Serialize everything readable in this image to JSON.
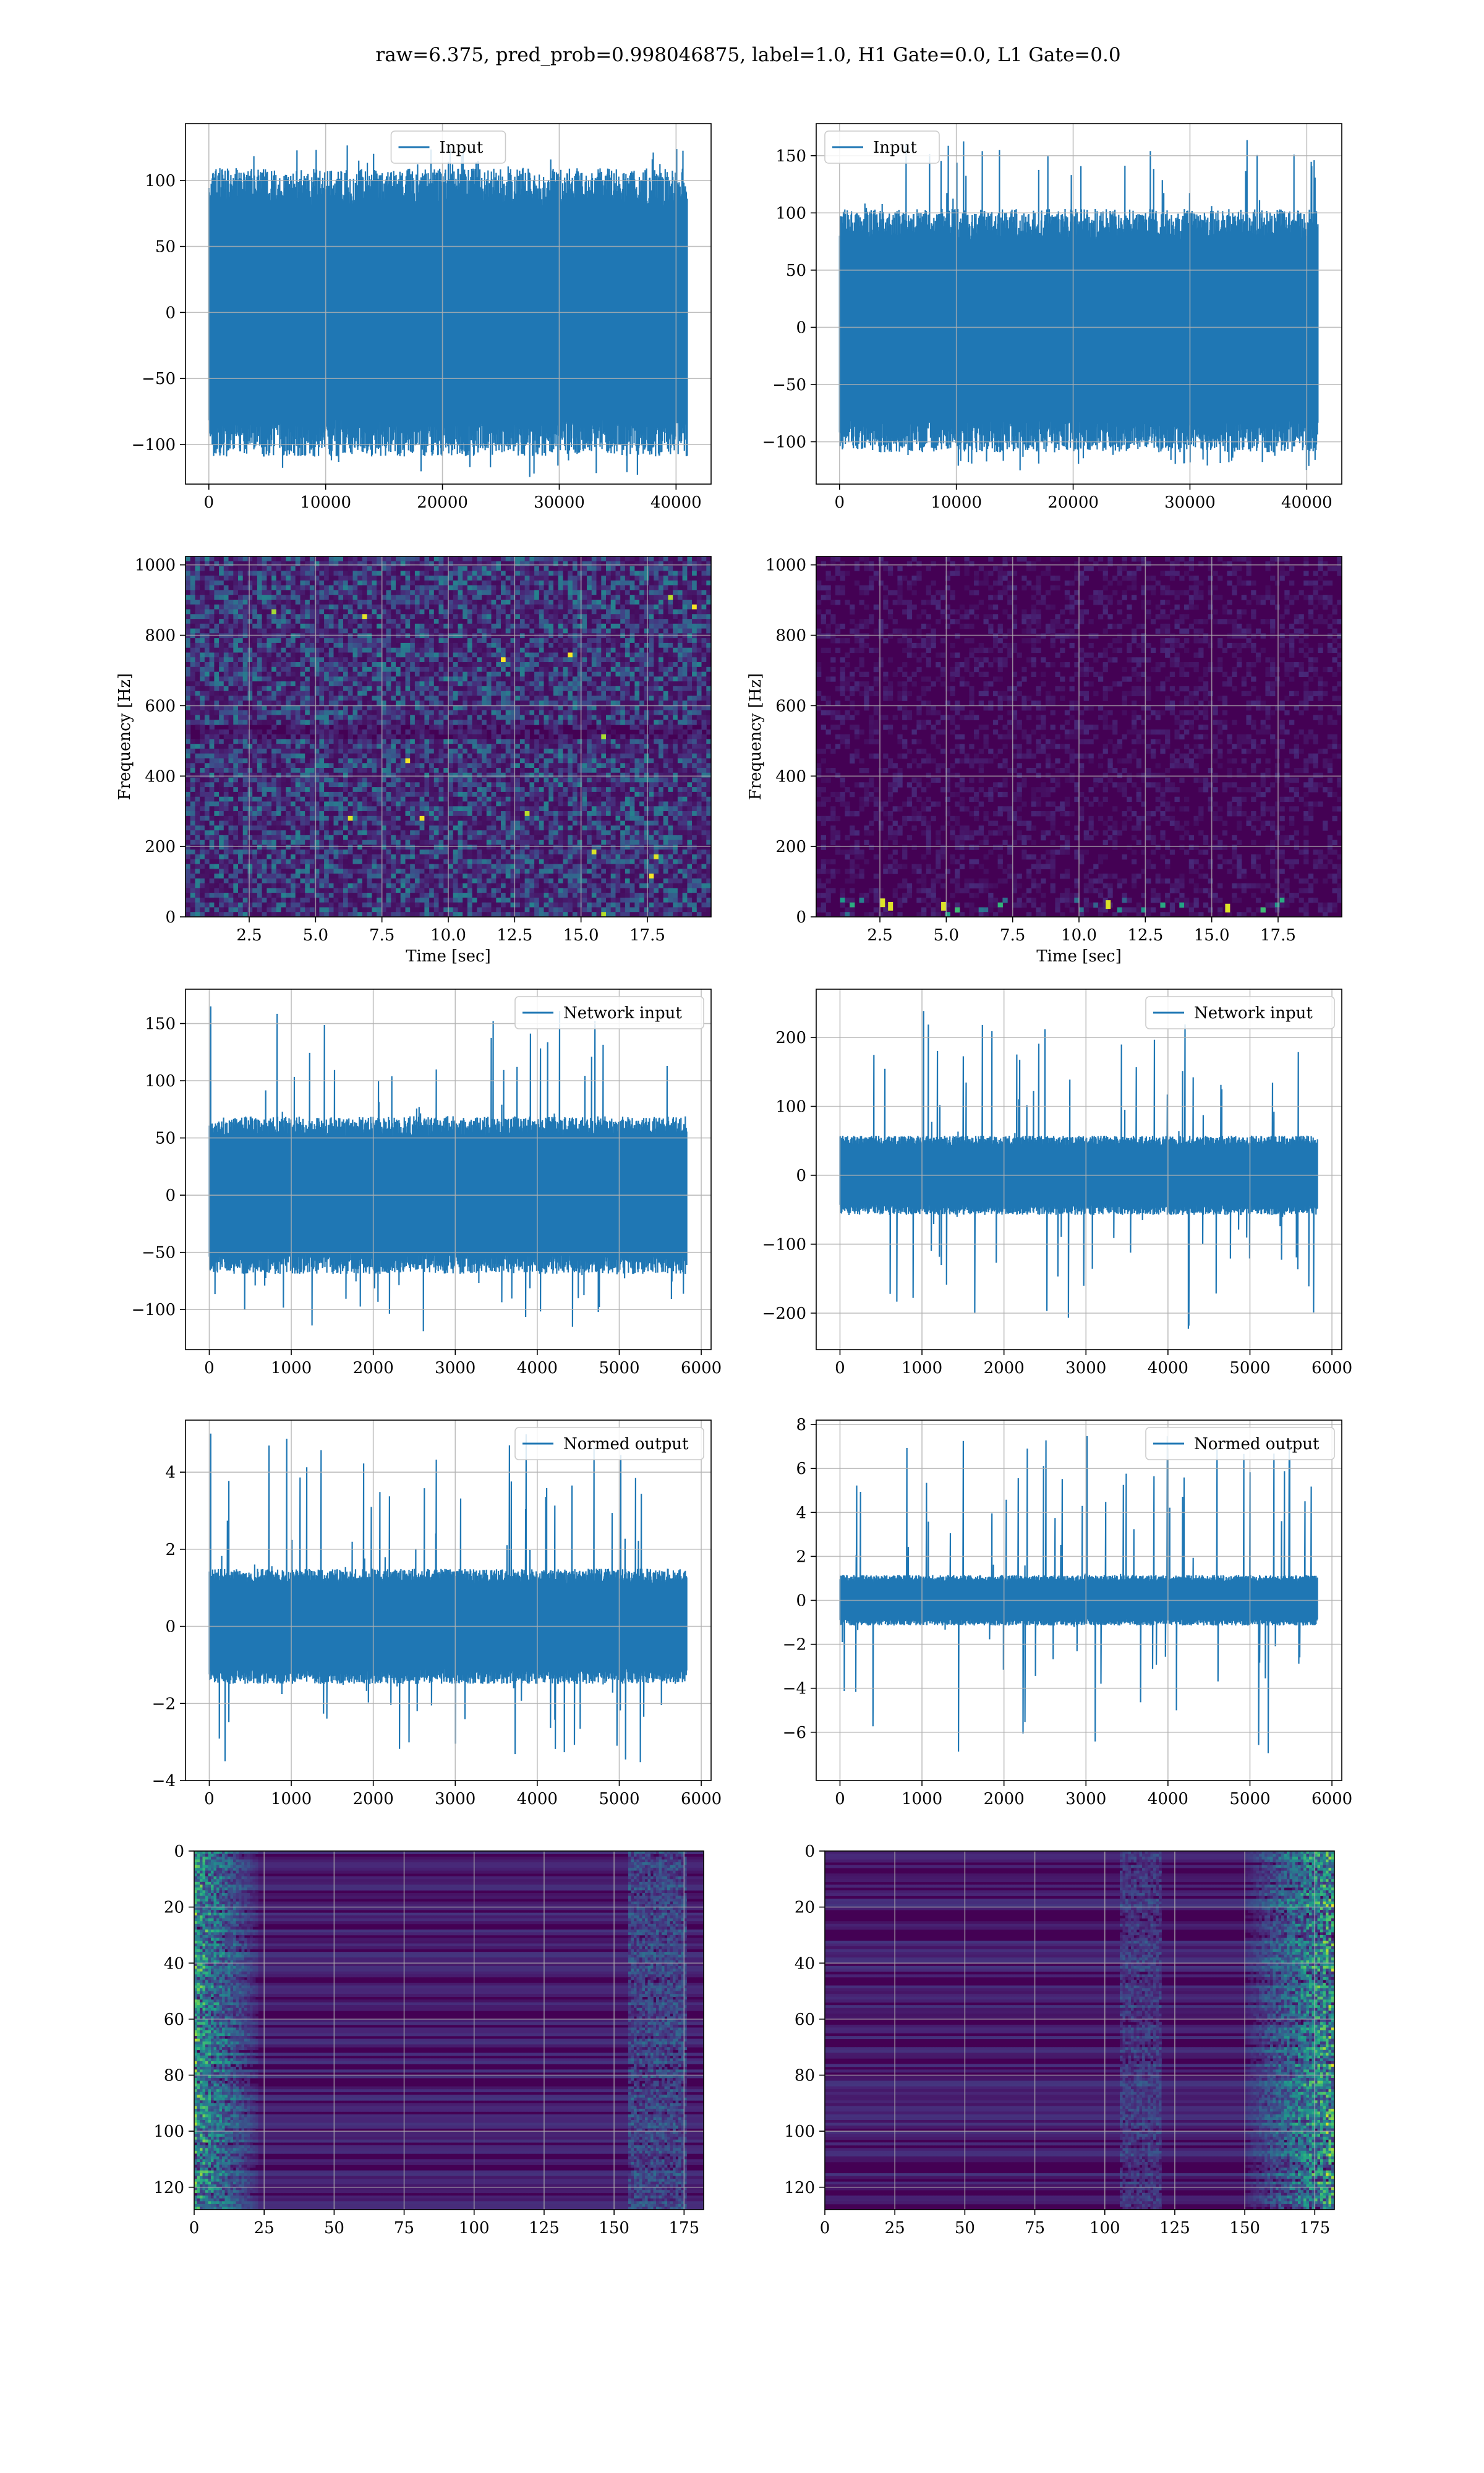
{
  "figure": {
    "suptitle": "raw=6.375, pred_prob=0.998046875, label=1.0, H1 Gate=0.0, L1 Gate=0.0",
    "colors": {
      "line": "#1f77b4",
      "heat_base": "#440154",
      "grid": "#b0b0b0"
    }
  },
  "chart_data": [
    {
      "id": "input-h1",
      "type": "line",
      "title": "",
      "xlabel": "",
      "ylabel": "",
      "legend": {
        "placement": "top-center",
        "entries": [
          "Input"
        ]
      },
      "series": [
        {
          "name": "Input",
          "n_samples": 40960,
          "envelope": {
            "typical_min": -95,
            "typical_max": 95,
            "peak_min": -125,
            "peak_max": 127
          }
        }
      ],
      "xlim": [
        -2000,
        43000
      ],
      "ylim": [
        -130,
        143
      ],
      "xticks": [
        0,
        10000,
        20000,
        30000,
        40000
      ],
      "xtick_labels": [
        "0",
        "10000",
        "20000",
        "30000",
        "40000"
      ],
      "yticks": [
        -100,
        -50,
        0,
        50,
        100
      ],
      "ytick_labels": [
        "−100",
        "−50",
        "0",
        "50",
        "100"
      ],
      "grid": true
    },
    {
      "id": "input-l1",
      "type": "line",
      "title": "",
      "xlabel": "",
      "ylabel": "",
      "legend": {
        "placement": "top-left",
        "entries": [
          "Input"
        ]
      },
      "series": [
        {
          "name": "Input",
          "n_samples": 40960,
          "envelope": {
            "typical_min": -95,
            "typical_max": 90,
            "peak_min": -125,
            "peak_max": 165
          }
        }
      ],
      "xlim": [
        -2000,
        43000
      ],
      "ylim": [
        -137,
        178
      ],
      "xticks": [
        0,
        10000,
        20000,
        30000,
        40000
      ],
      "xtick_labels": [
        "0",
        "10000",
        "20000",
        "30000",
        "40000"
      ],
      "yticks": [
        -100,
        -50,
        0,
        50,
        100,
        150
      ],
      "ytick_labels": [
        "−100",
        "−50",
        "0",
        "50",
        "100",
        "150"
      ],
      "grid": true
    },
    {
      "id": "spectrogram-h1",
      "type": "heatmap",
      "title": "",
      "xlabel": "Time [sec]",
      "ylabel": "Frequency [Hz]",
      "xlim": [
        0.1,
        19.9
      ],
      "ylim": [
        0,
        1024
      ],
      "xticks": [
        2.5,
        5.0,
        7.5,
        10.0,
        12.5,
        15.0,
        17.5
      ],
      "xtick_labels": [
        "2.5",
        "5.0",
        "7.5",
        "10.0",
        "12.5",
        "15.0",
        "17.5"
      ],
      "yticks": [
        0,
        200,
        400,
        600,
        800,
        1000
      ],
      "ytick_labels": [
        "0",
        "200",
        "400",
        "600",
        "800",
        "1000"
      ],
      "colormap": "viridis",
      "grid": true
    },
    {
      "id": "spectrogram-l1",
      "type": "heatmap",
      "title": "",
      "xlabel": "Time [sec]",
      "ylabel": "Frequency [Hz]",
      "xlim": [
        0.1,
        19.9
      ],
      "ylim": [
        0,
        1024
      ],
      "xticks": [
        2.5,
        5.0,
        7.5,
        10.0,
        12.5,
        15.0,
        17.5
      ],
      "xtick_labels": [
        "2.5",
        "5.0",
        "7.5",
        "10.0",
        "12.5",
        "15.0",
        "17.5"
      ],
      "yticks": [
        0,
        200,
        400,
        600,
        800,
        1000
      ],
      "ytick_labels": [
        "0",
        "200",
        "400",
        "600",
        "800",
        "1000"
      ],
      "colormap": "viridis",
      "grid": true
    },
    {
      "id": "network-input-h1",
      "type": "line",
      "title": "",
      "xlabel": "",
      "ylabel": "",
      "legend": {
        "placement": "top-right",
        "entries": [
          "Network input"
        ]
      },
      "series": [
        {
          "name": "Network input",
          "n_samples": 5824,
          "envelope": {
            "typical_min": -60,
            "typical_max": 60,
            "peak_min": -120,
            "peak_max": 165
          }
        }
      ],
      "xlim": [
        -290,
        6120
      ],
      "ylim": [
        -135,
        180
      ],
      "xticks": [
        0,
        1000,
        2000,
        3000,
        4000,
        5000,
        6000
      ],
      "xtick_labels": [
        "0",
        "1000",
        "2000",
        "3000",
        "4000",
        "5000",
        "6000"
      ],
      "yticks": [
        -100,
        -50,
        0,
        50,
        100,
        150
      ],
      "ytick_labels": [
        "−100",
        "−50",
        "0",
        "50",
        "100",
        "150"
      ],
      "grid": true
    },
    {
      "id": "network-input-l1",
      "type": "line",
      "title": "",
      "xlabel": "",
      "ylabel": "",
      "legend": {
        "placement": "top-right",
        "entries": [
          "Network input"
        ]
      },
      "series": [
        {
          "name": "Network input",
          "n_samples": 5824,
          "envelope": {
            "typical_min": -50,
            "typical_max": 50,
            "peak_min": -225,
            "peak_max": 245
          }
        }
      ],
      "xlim": [
        -290,
        6120
      ],
      "ylim": [
        -253,
        270
      ],
      "xticks": [
        0,
        1000,
        2000,
        3000,
        4000,
        5000,
        6000
      ],
      "xtick_labels": [
        "0",
        "1000",
        "2000",
        "3000",
        "4000",
        "5000",
        "6000"
      ],
      "yticks": [
        -200,
        -100,
        0,
        100,
        200
      ],
      "ytick_labels": [
        "−200",
        "−100",
        "0",
        "100",
        "200"
      ],
      "grid": true
    },
    {
      "id": "normed-output-h1",
      "type": "line",
      "title": "",
      "xlabel": "",
      "ylabel": "",
      "legend": {
        "placement": "top-right",
        "entries": [
          "Normed output"
        ]
      },
      "series": [
        {
          "name": "Normed output",
          "n_samples": 5824,
          "envelope": {
            "typical_min": -1.3,
            "typical_max": 1.3,
            "peak_min": -3.6,
            "peak_max": 5.0
          }
        }
      ],
      "xlim": [
        -290,
        6120
      ],
      "ylim": [
        -4.0,
        5.35
      ],
      "xticks": [
        0,
        1000,
        2000,
        3000,
        4000,
        5000,
        6000
      ],
      "xtick_labels": [
        "0",
        "1000",
        "2000",
        "3000",
        "4000",
        "5000",
        "6000"
      ],
      "yticks": [
        -4,
        -2,
        0,
        2,
        4
      ],
      "ytick_labels": [
        "−4",
        "−2",
        "0",
        "2",
        "4"
      ],
      "grid": true
    },
    {
      "id": "normed-output-l1",
      "type": "line",
      "title": "",
      "xlabel": "",
      "ylabel": "",
      "legend": {
        "placement": "top-right",
        "entries": [
          "Normed output"
        ]
      },
      "series": [
        {
          "name": "Normed output",
          "n_samples": 5824,
          "envelope": {
            "typical_min": -1.0,
            "typical_max": 1.0,
            "peak_min": -7.0,
            "peak_max": 7.5
          }
        }
      ],
      "xlim": [
        -290,
        6120
      ],
      "ylim": [
        -8.2,
        8.2
      ],
      "xticks": [
        0,
        1000,
        2000,
        3000,
        4000,
        5000,
        6000
      ],
      "xtick_labels": [
        "0",
        "1000",
        "2000",
        "3000",
        "4000",
        "5000",
        "6000"
      ],
      "yticks": [
        -6,
        -4,
        -2,
        0,
        2,
        4,
        6,
        8
      ],
      "ytick_labels": [
        "−6",
        "−4",
        "−2",
        "0",
        "2",
        "4",
        "6",
        "8"
      ],
      "grid": true
    },
    {
      "id": "embedding-h1",
      "type": "heatmap",
      "title": "",
      "xlabel": "",
      "ylabel": "",
      "xlim": [
        0,
        182
      ],
      "ylim": [
        128,
        0
      ],
      "xticks": [
        0,
        25,
        50,
        75,
        100,
        125,
        150,
        175
      ],
      "xtick_labels": [
        "0",
        "25",
        "50",
        "75",
        "100",
        "125",
        "150",
        "175"
      ],
      "yticks": [
        0,
        20,
        40,
        60,
        80,
        100,
        120
      ],
      "ytick_labels": [
        "0",
        "20",
        "40",
        "60",
        "80",
        "100",
        "120"
      ],
      "colormap": "viridis",
      "grid": true
    },
    {
      "id": "embedding-l1",
      "type": "heatmap",
      "title": "",
      "xlabel": "",
      "ylabel": "",
      "xlim": [
        0,
        182
      ],
      "ylim": [
        128,
        0
      ],
      "xticks": [
        0,
        25,
        50,
        75,
        100,
        125,
        150,
        175
      ],
      "xtick_labels": [
        "0",
        "25",
        "50",
        "75",
        "100",
        "125",
        "150",
        "175"
      ],
      "yticks": [
        0,
        20,
        40,
        60,
        80,
        100,
        120
      ],
      "ytick_labels": [
        "0",
        "20",
        "40",
        "60",
        "80",
        "100",
        "120"
      ],
      "colormap": "viridis",
      "grid": true
    }
  ]
}
